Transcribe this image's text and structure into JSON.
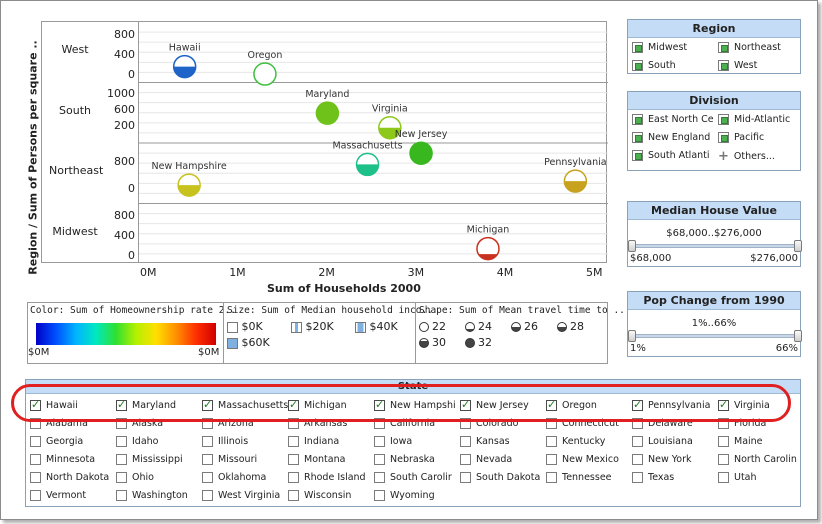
{
  "chart": {
    "x_axis_title": "Sum of Households 2000",
    "y_axis_title": "Region / Sum of Persons per square ..",
    "x_ticks": [
      "0M",
      "1M",
      "2M",
      "3M",
      "4M",
      "5M"
    ],
    "rows": [
      {
        "label": "West",
        "ticks": [
          "800",
          "400",
          "0"
        ]
      },
      {
        "label": "South",
        "ticks": [
          "1000",
          "600",
          "200"
        ]
      },
      {
        "label": "Northeast",
        "ticks": [
          "800",
          "0"
        ]
      },
      {
        "label": "Midwest",
        "ticks": [
          "800",
          "400",
          "0"
        ]
      }
    ]
  },
  "chart_data": {
    "type": "scatter",
    "xlabel": "Sum of Households 2000",
    "ylabel": "Region / Sum of Persons per square ..",
    "x_unit": "M",
    "points": [
      {
        "name": "Hawaii",
        "region": "West",
        "x": 0.4,
        "y": 180,
        "color": "#1e63c8",
        "fill": 0.5
      },
      {
        "name": "Oregon",
        "region": "West",
        "x": 1.3,
        "y": 30,
        "color": "#3fbf3f",
        "fill": 0.0
      },
      {
        "name": "Maryland",
        "region": "South",
        "x": 2.0,
        "y": 540,
        "color": "#6fc21a",
        "fill": 1.0
      },
      {
        "name": "Virginia",
        "region": "South",
        "x": 2.7,
        "y": 180,
        "color": "#8ec81a",
        "fill": 0.5
      },
      {
        "name": "Massachusetts",
        "region": "Northeast",
        "x": 2.45,
        "y": 770,
        "color": "#1ec08a",
        "fill": 0.5
      },
      {
        "name": "New Jersey",
        "region": "Northeast",
        "x": 3.05,
        "y": 1110,
        "color": "#38b81e",
        "fill": 1.0
      },
      {
        "name": "New Hampshire",
        "region": "Northeast",
        "x": 0.45,
        "y": 140,
        "color": "#c8c21e",
        "fill": 0.5
      },
      {
        "name": "Pennsylvania",
        "region": "Northeast",
        "x": 4.78,
        "y": 260,
        "color": "#c8a21e",
        "fill": 0.5
      },
      {
        "name": "Michigan",
        "region": "Midwest",
        "x": 3.8,
        "y": 170,
        "color": "#c8321e",
        "fill": 0.25
      }
    ]
  },
  "legends": {
    "color_title": "Color: Sum of Homeownership rate 2..",
    "color_min": "$0M",
    "color_max": "$0M",
    "size_title": "Size: Sum of Median household inco..",
    "size_items": [
      "$0K",
      "$20K",
      "$40K",
      "$60K"
    ],
    "shape_title": "Shape: Sum of Mean travel time to ..",
    "shape_items": [
      "22",
      "24",
      "26",
      "28",
      "30",
      "32"
    ]
  },
  "region": {
    "title": "Region",
    "items": [
      "Midwest",
      "Northeast",
      "South",
      "West"
    ]
  },
  "division": {
    "title": "Division",
    "items": [
      "East North Ce",
      "Mid-Atlantic",
      "New England",
      "Pacific",
      "South Atlanti",
      "Others..."
    ]
  },
  "median_house": {
    "title": "Median House Value",
    "range": "$68,000..$276,000",
    "min": "$68,000",
    "max": "$276,000"
  },
  "pop_change": {
    "title": "Pop Change from 1990",
    "range": "1%..66%",
    "min": "1%",
    "max": "66%"
  },
  "state": {
    "title": "State",
    "checked": [
      "Hawaii",
      "Maryland",
      "Massachusetts",
      "Michigan",
      "New Hampshi",
      "New Jersey",
      "Oregon",
      "Pennsylvania",
      "Virginia"
    ],
    "rows": [
      [
        "Alabama",
        "Alaska",
        "Arizona",
        "Arkansas",
        "California",
        "Colorado",
        "Connecticut",
        "Delaware",
        "Florida"
      ],
      [
        "Georgia",
        "Idaho",
        "Illinois",
        "Indiana",
        "Iowa",
        "Kansas",
        "Kentucky",
        "Louisiana",
        "Maine"
      ],
      [
        "Minnesota",
        "Mississippi",
        "Missouri",
        "Montana",
        "Nebraska",
        "Nevada",
        "New Mexico",
        "New York",
        "North Carolin"
      ],
      [
        "North Dakota",
        "Ohio",
        "Oklahoma",
        "Rhode Island",
        "South Carolir",
        "South Dakota",
        "Tennessee",
        "Texas",
        "Utah"
      ],
      [
        "Vermont",
        "Washington",
        "West Virginia",
        "Wisconsin",
        "Wyoming"
      ]
    ]
  },
  "colors": {
    "panel_header": "#c4dcf5",
    "highlight": "#e02020"
  }
}
